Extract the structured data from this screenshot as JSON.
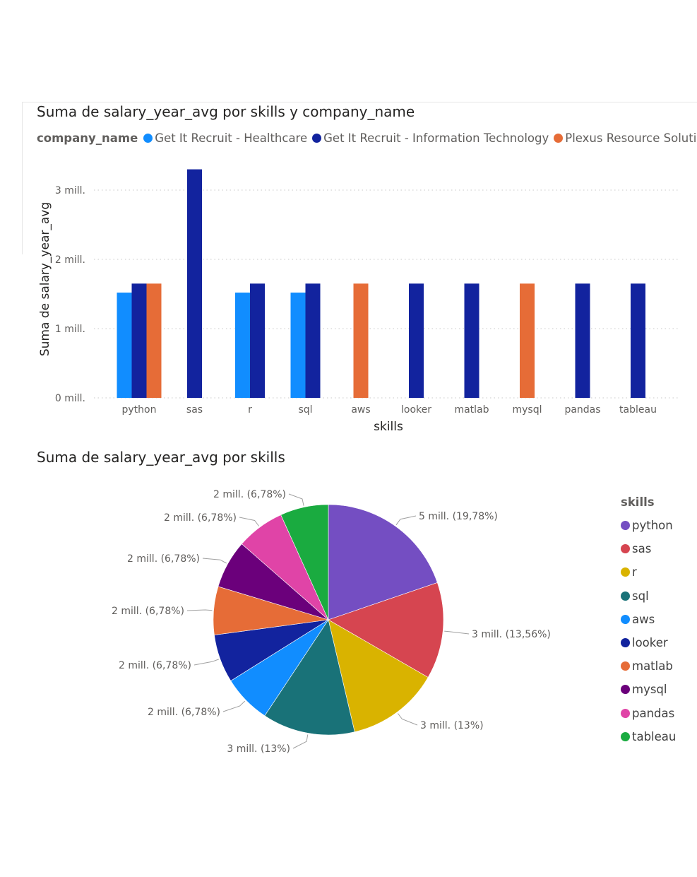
{
  "bar_chart": {
    "title": "Suma de salary_year_avg por skills y company_name",
    "legend_title": "company_name",
    "xlabel": "skills",
    "ylabel": "Suma de salary_year_avg",
    "y_tick_labels": [
      "0 mill.",
      "1 mill.",
      "2 mill.",
      "3 mill."
    ]
  },
  "pie_chart": {
    "title": "Suma de salary_year_avg por skills",
    "legend_title": "skills"
  },
  "chart_data": [
    {
      "type": "bar",
      "title": "Suma de salary_year_avg por skills y company_name",
      "xlabel": "skills",
      "ylabel": "Suma de salary_year_avg",
      "ylim": [
        0,
        3500000
      ],
      "y_ticks": [
        0,
        1000000,
        2000000,
        3000000
      ],
      "grid": true,
      "legend_position": "top",
      "categories": [
        "python",
        "sas",
        "r",
        "sql",
        "aws",
        "looker",
        "matlab",
        "mysql",
        "pandas",
        "tableau"
      ],
      "series": [
        {
          "name": "Get It Recruit - Healthcare",
          "color": "#118DFF",
          "values": [
            1520000,
            null,
            1520000,
            1520000,
            null,
            null,
            null,
            null,
            null,
            null
          ]
        },
        {
          "name": "Get It Recruit - Information Technology",
          "color": "#12239E",
          "values": [
            1650000,
            3300000,
            1650000,
            1650000,
            null,
            1650000,
            1650000,
            null,
            1650000,
            1650000
          ]
        },
        {
          "name": "Plexus Resource Solutions",
          "color": "#E66C37",
          "values": [
            1650000,
            null,
            null,
            null,
            1650000,
            null,
            null,
            1650000,
            null,
            null
          ]
        }
      ]
    },
    {
      "type": "pie",
      "title": "Suma de salary_year_avg por skills",
      "legend_title": "skills",
      "legend_position": "right",
      "slices": [
        {
          "name": "python",
          "percent": 19.78,
          "label": "5 mill. (19,78%)",
          "color": "#744EC2"
        },
        {
          "name": "sas",
          "percent": 13.56,
          "label": "3 mill. (13,56%)",
          "color": "#D64550"
        },
        {
          "name": "r",
          "percent": 13.0,
          "label": "3 mill. (13%)",
          "color": "#D9B300"
        },
        {
          "name": "sql",
          "percent": 13.0,
          "label": "3 mill. (13%)",
          "color": "#197278"
        },
        {
          "name": "aws",
          "percent": 6.78,
          "label": "2 mill. (6,78%)",
          "color": "#118DFF"
        },
        {
          "name": "looker",
          "percent": 6.78,
          "label": "2 mill. (6,78%)",
          "color": "#12239E"
        },
        {
          "name": "matlab",
          "percent": 6.78,
          "label": "2 mill. (6,78%)",
          "color": "#E66C37"
        },
        {
          "name": "mysql",
          "percent": 6.78,
          "label": "2 mill. (6,78%)",
          "color": "#6B007B"
        },
        {
          "name": "pandas",
          "percent": 6.78,
          "label": "2 mill. (6,78%)",
          "color": "#E044A7"
        },
        {
          "name": "tableau",
          "percent": 6.78,
          "label": "2 mill. (6,78%)",
          "color": "#1AAB40"
        }
      ]
    }
  ]
}
